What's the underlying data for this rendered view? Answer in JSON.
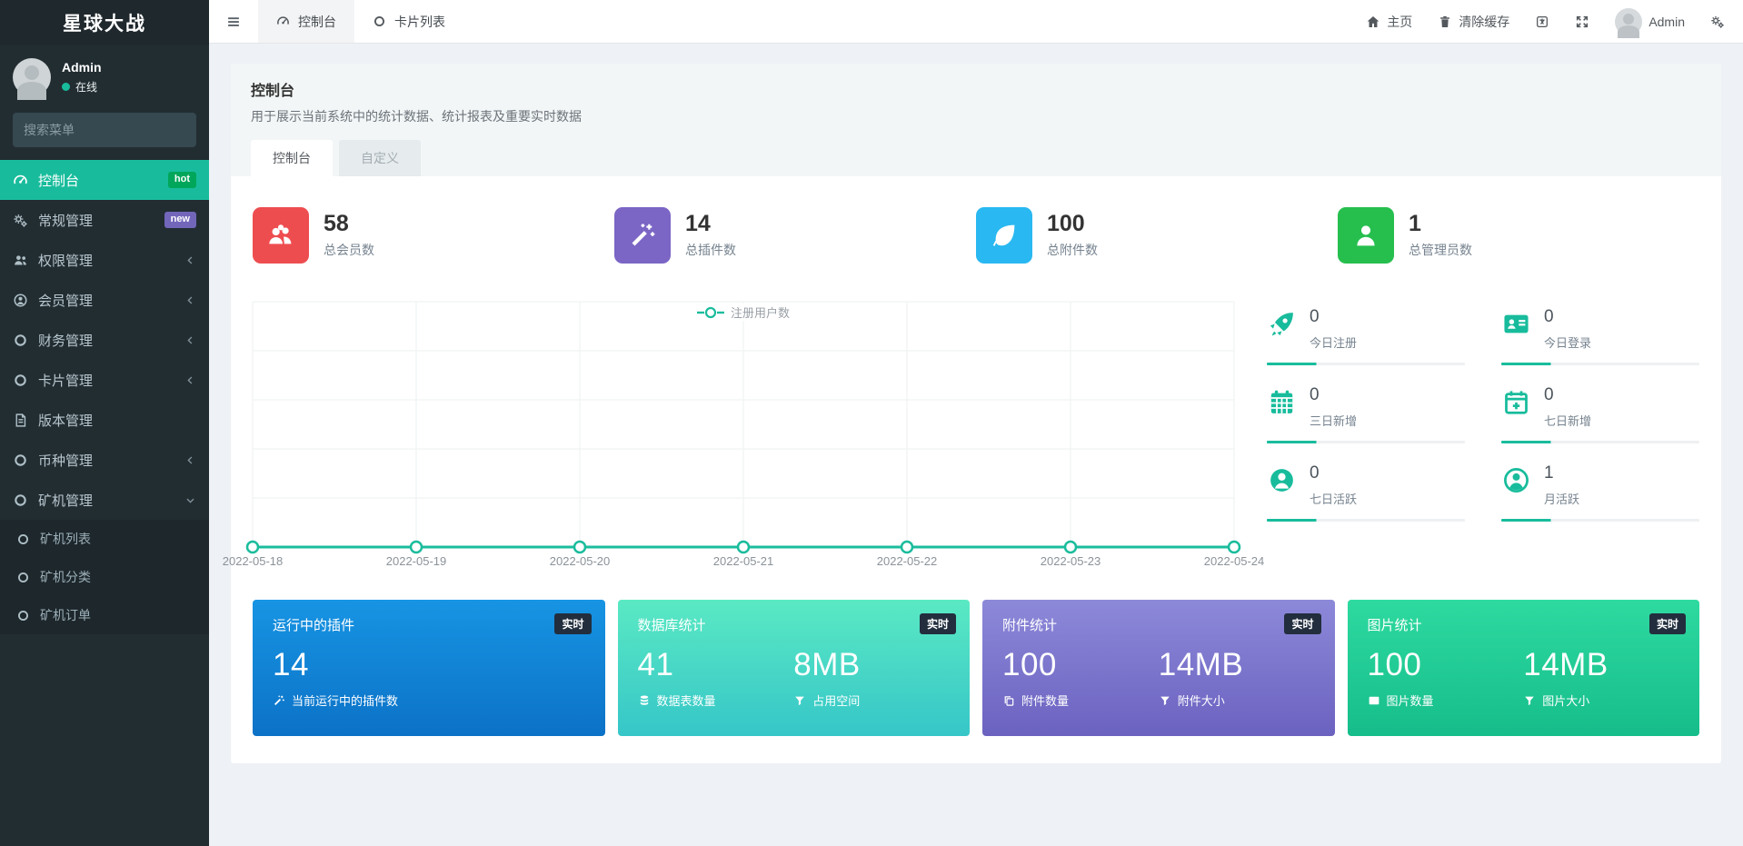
{
  "brand": {
    "title": "星球大战"
  },
  "user_panel": {
    "name": "Admin",
    "status": "在线",
    "status_color": "#18bc9c"
  },
  "search": {
    "placeholder": "搜索菜单"
  },
  "sidebar": {
    "menu": [
      {
        "label": "控制台",
        "icon": "tachometer-icon",
        "badge": "hot",
        "active": true
      },
      {
        "label": "常规管理",
        "icon": "gears-icon",
        "badge": "new"
      },
      {
        "label": "权限管理",
        "icon": "users-icon",
        "chevron": "left"
      },
      {
        "label": "会员管理",
        "icon": "user-circle-icon",
        "chevron": "left"
      },
      {
        "label": "财务管理",
        "icon": "circle-icon",
        "chevron": "left"
      },
      {
        "label": "卡片管理",
        "icon": "circle-icon",
        "chevron": "left"
      },
      {
        "label": "版本管理",
        "icon": "file-icon"
      },
      {
        "label": "币种管理",
        "icon": "circle-icon",
        "chevron": "left"
      },
      {
        "label": "矿机管理",
        "icon": "circle-icon",
        "chevron": "down",
        "open": true
      }
    ],
    "submenu": [
      {
        "label": "矿机列表",
        "icon": "circle-icon"
      },
      {
        "label": "矿机分类",
        "icon": "circle-icon"
      },
      {
        "label": "矿机订单",
        "icon": "circle-icon"
      }
    ],
    "badge_colors": {
      "hot": "#00a65a",
      "new": "#7266ba"
    },
    "active_color": "#18bc9c"
  },
  "topbar": {
    "tabs": [
      {
        "label": "控制台",
        "icon": "tachometer-icon",
        "active": true
      },
      {
        "label": "卡片列表",
        "icon": "circle-icon"
      }
    ],
    "right": {
      "home": "主页",
      "clear_cache": "清除缓存",
      "username": "Admin"
    }
  },
  "overview": {
    "title": "控制台",
    "subtitle": "用于展示当前系统中的统计数据、统计报表及重要实时数据",
    "tabs": {
      "console": "控制台",
      "custom": "自定义"
    }
  },
  "stats": [
    {
      "value": "58",
      "label": "总会员数",
      "icon": "group-icon",
      "color": "#ee4d50"
    },
    {
      "value": "14",
      "label": "总插件数",
      "icon": "magic-icon",
      "color": "#7b65c5"
    },
    {
      "value": "100",
      "label": "总附件数",
      "icon": "leaf-icon",
      "color": "#29b8f1"
    },
    {
      "value": "1",
      "label": "总管理员数",
      "icon": "user-icon",
      "color": "#26bf4e"
    }
  ],
  "chart_data": {
    "type": "line",
    "x": [
      "2022-05-18",
      "2022-05-19",
      "2022-05-20",
      "2022-05-21",
      "2022-05-22",
      "2022-05-23",
      "2022-05-24"
    ],
    "series": [
      {
        "name": "注册用户数",
        "values": [
          0,
          0,
          0,
          0,
          0,
          0,
          0
        ]
      }
    ],
    "ylim": [
      0,
      1
    ],
    "grid": true,
    "legend_position": "top",
    "line_color": "#1abc9c"
  },
  "minis": [
    {
      "value": "0",
      "label": "今日注册",
      "icon": "rocket-icon"
    },
    {
      "value": "0",
      "label": "今日登录",
      "icon": "address-card-icon"
    },
    {
      "value": "0",
      "label": "三日新增",
      "icon": "calendar-icon"
    },
    {
      "value": "0",
      "label": "七日新增",
      "icon": "calendar-plus-icon"
    },
    {
      "value": "0",
      "label": "七日活跃",
      "icon": "user-circle-icon"
    },
    {
      "value": "1",
      "label": "月活跃",
      "icon": "user-circle-o-icon"
    }
  ],
  "cards": [
    {
      "title": "运行中的插件",
      "badge": "实时",
      "gradient": [
        "#1794e3",
        "#0c72c7"
      ],
      "metrics": [
        {
          "value": "14",
          "label": "当前运行中的插件数",
          "icon": "magic-icon"
        }
      ]
    },
    {
      "title": "数据库统计",
      "badge": "实时",
      "gradient": [
        "#5ae9c3",
        "#36c6c8"
      ],
      "metrics": [
        {
          "value": "41",
          "label": "数据表数量",
          "icon": "database-icon"
        },
        {
          "value": "8MB",
          "label": "占用空间",
          "icon": "filter-icon"
        }
      ]
    },
    {
      "title": "附件统计",
      "badge": "实时",
      "gradient": [
        "#8d89d9",
        "#6b62c0"
      ],
      "metrics": [
        {
          "value": "100",
          "label": "附件数量",
          "icon": "copy-icon"
        },
        {
          "value": "14MB",
          "label": "附件大小",
          "icon": "filter-icon"
        }
      ]
    },
    {
      "title": "图片统计",
      "badge": "实时",
      "gradient": [
        "#2edaa0",
        "#16bd8a"
      ],
      "metrics": [
        {
          "value": "100",
          "label": "图片数量",
          "icon": "image-icon"
        },
        {
          "value": "14MB",
          "label": "图片大小",
          "icon": "filter-icon"
        }
      ]
    }
  ]
}
